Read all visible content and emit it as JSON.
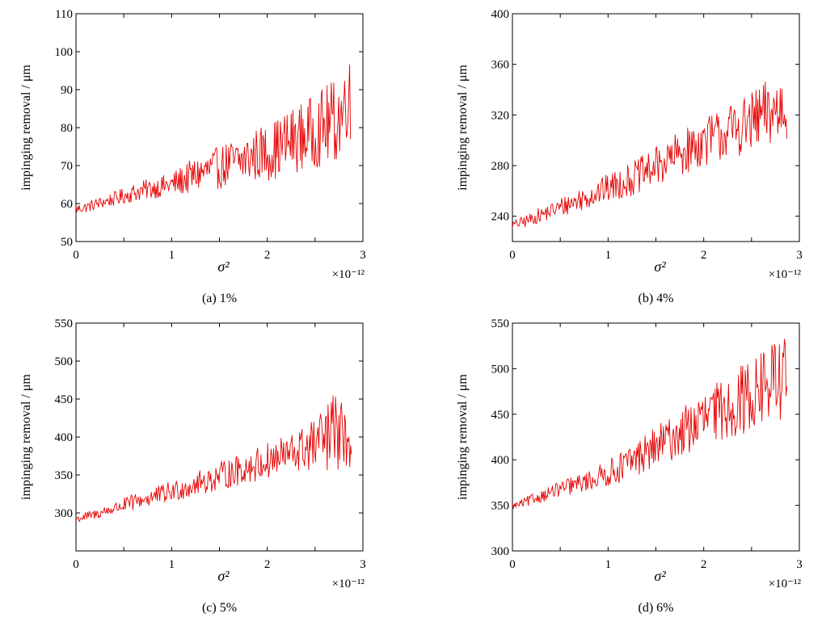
{
  "page": {
    "background": "#ffffff"
  },
  "chart_data": [
    {
      "type": "line",
      "caption": "(a)  1%",
      "ylabel": "impinging removal / μm",
      "xlabel": "σ²",
      "x_multiplier": "×10⁻¹²",
      "xlim": [
        0,
        3
      ],
      "ylim": [
        50,
        110
      ],
      "xticks": [
        "0",
        "1",
        "2",
        "3"
      ],
      "yticks": [
        "50",
        "60",
        "70",
        "80",
        "90",
        "100",
        "110"
      ],
      "color": "#e60000",
      "series": [
        {
          "x": [
            0.0,
            0.1,
            0.2,
            0.3,
            0.4,
            0.5,
            0.6,
            0.7,
            0.8,
            0.9,
            1.0,
            1.1,
            1.2,
            1.3,
            1.4,
            1.5,
            1.6,
            1.7,
            1.8,
            1.9,
            2.0,
            2.1,
            2.2,
            2.3,
            2.4,
            2.5,
            2.6,
            2.7,
            2.8,
            2.85,
            2.87
          ],
          "y": [
            58.5,
            59.0,
            59.8,
            60.5,
            61.2,
            62.0,
            62.8,
            63.5,
            64.0,
            64.5,
            65.0,
            66.0,
            67.0,
            68.0,
            68.8,
            69.5,
            70.5,
            71.0,
            72.0,
            73.0,
            73.5,
            74.5,
            76.0,
            77.0,
            78.0,
            79.0,
            80.5,
            81.5,
            84.0,
            95.0,
            80.0
          ],
          "noise": [
            0.8,
            0.9,
            1.0,
            1.0,
            1.2,
            1.3,
            1.5,
            1.6,
            1.7,
            1.8,
            2.0,
            2.4,
            2.8,
            3.0,
            3.3,
            3.5,
            3.8,
            4.0,
            4.3,
            4.5,
            4.7,
            5.0,
            5.3,
            5.5,
            5.8,
            6.0,
            6.5,
            7.0,
            8.0,
            9.0,
            6.0
          ]
        }
      ]
    },
    {
      "type": "line",
      "caption": "(b)  4%",
      "ylabel": "impinging removal / μm",
      "xlabel": "σ²",
      "x_multiplier": "×10⁻¹²",
      "xlim": [
        0,
        3
      ],
      "ylim": [
        220,
        400
      ],
      "xticks": [
        "0",
        "1",
        "2",
        "3"
      ],
      "yticks": [
        "240",
        "280",
        "320",
        "360",
        "400"
      ],
      "color": "#e60000",
      "series": [
        {
          "x": [
            0.0,
            0.1,
            0.2,
            0.3,
            0.4,
            0.5,
            0.6,
            0.7,
            0.8,
            0.9,
            1.0,
            1.1,
            1.2,
            1.3,
            1.4,
            1.5,
            1.6,
            1.7,
            1.8,
            1.9,
            2.0,
            2.1,
            2.2,
            2.3,
            2.4,
            2.5,
            2.6,
            2.7,
            2.8,
            2.85,
            2.87
          ],
          "y": [
            233,
            235,
            238,
            241,
            244,
            247,
            250,
            253,
            256,
            259,
            262,
            265,
            268,
            271,
            275,
            279,
            283,
            287,
            291,
            295,
            299,
            302,
            305,
            308,
            311,
            314,
            318,
            322,
            325,
            330,
            318
          ],
          "noise": [
            2,
            3,
            3,
            4,
            4,
            5,
            5,
            6,
            6,
            7,
            7,
            8,
            8,
            9,
            9,
            10,
            10,
            11,
            11,
            12,
            12,
            13,
            13,
            14,
            14,
            15,
            16,
            18,
            20,
            20,
            12
          ]
        }
      ]
    },
    {
      "type": "line",
      "caption": "(c)  5%",
      "ylabel": "impinging removal / μm",
      "xlabel": "σ²",
      "x_multiplier": "×10⁻¹²",
      "xlim": [
        0,
        3
      ],
      "ylim": [
        250,
        550
      ],
      "xticks": [
        "0",
        "1",
        "2",
        "3"
      ],
      "yticks": [
        "300",
        "350",
        "400",
        "450",
        "500",
        "550"
      ],
      "color": "#e60000",
      "series": [
        {
          "x": [
            0.0,
            0.1,
            0.2,
            0.3,
            0.4,
            0.5,
            0.6,
            0.7,
            0.8,
            0.9,
            1.0,
            1.1,
            1.2,
            1.3,
            1.4,
            1.5,
            1.6,
            1.7,
            1.8,
            1.9,
            2.0,
            2.1,
            2.2,
            2.3,
            2.4,
            2.5,
            2.6,
            2.7,
            2.8,
            2.85,
            2.88
          ],
          "y": [
            292,
            295,
            298,
            302,
            306,
            310,
            314,
            318,
            321,
            324,
            328,
            332,
            336,
            340,
            344,
            348,
            352,
            356,
            360,
            364,
            368,
            372,
            376,
            380,
            385,
            390,
            397,
            405,
            400,
            395,
            368
          ],
          "noise": [
            3,
            4,
            4,
            5,
            5,
            6,
            7,
            7,
            8,
            8,
            9,
            9,
            10,
            10,
            11,
            12,
            12,
            13,
            13,
            14,
            15,
            16,
            17,
            18,
            20,
            22,
            28,
            35,
            25,
            20,
            10
          ]
        }
      ]
    },
    {
      "type": "line",
      "caption": "(d)  6%",
      "ylabel": "impinging removal / μm",
      "xlabel": "σ²",
      "x_multiplier": "×10⁻¹²",
      "xlim": [
        0,
        3
      ],
      "ylim": [
        300,
        550
      ],
      "xticks": [
        "0",
        "1",
        "2",
        "3"
      ],
      "yticks": [
        "300",
        "350",
        "400",
        "450",
        "500",
        "550"
      ],
      "color": "#e60000",
      "series": [
        {
          "x": [
            0.0,
            0.1,
            0.2,
            0.3,
            0.4,
            0.5,
            0.6,
            0.7,
            0.8,
            0.9,
            1.0,
            1.1,
            1.2,
            1.3,
            1.4,
            1.5,
            1.6,
            1.7,
            1.8,
            1.9,
            2.0,
            2.1,
            2.2,
            2.3,
            2.4,
            2.5,
            2.6,
            2.7,
            2.8,
            2.85,
            2.87
          ],
          "y": [
            349,
            352,
            356,
            360,
            364,
            368,
            371,
            374,
            377,
            381,
            385,
            390,
            396,
            402,
            408,
            414,
            420,
            426,
            432,
            438,
            444,
            450,
            455,
            460,
            466,
            472,
            478,
            484,
            490,
            495,
            480
          ],
          "noise": [
            2,
            3,
            4,
            4,
            5,
            5,
            6,
            6,
            7,
            8,
            9,
            10,
            11,
            12,
            13,
            14,
            15,
            16,
            17,
            18,
            19,
            20,
            21,
            22,
            24,
            26,
            28,
            30,
            30,
            28,
            15
          ]
        }
      ]
    }
  ]
}
